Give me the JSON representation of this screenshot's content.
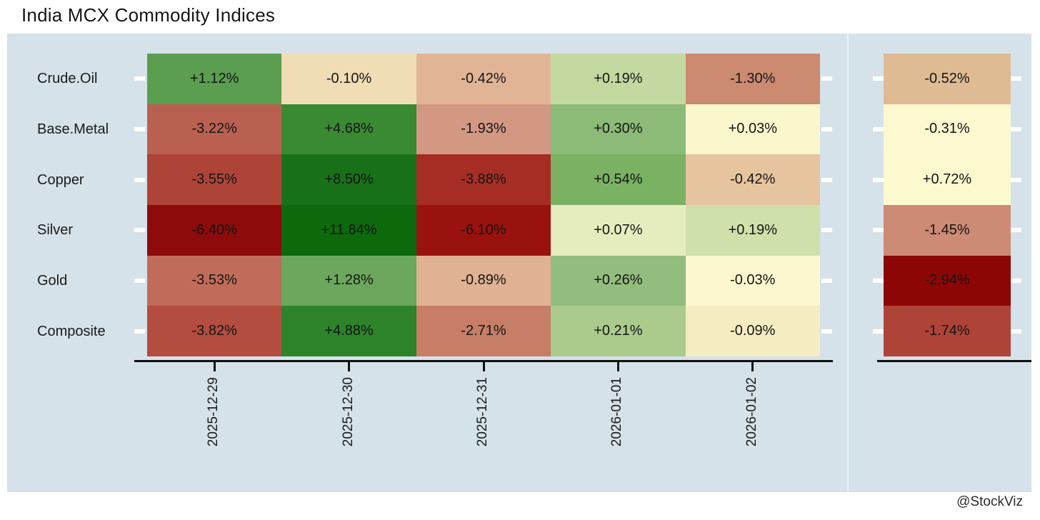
{
  "title": "India MCX Commodity Indices",
  "watermark": "@StockViz",
  "colors": {
    "panel_bg": "#d6e2e9",
    "axis": "#111111",
    "tick": "#ffffff",
    "cell_text": "#151515"
  },
  "chart_data": {
    "type": "heatmap",
    "title": "India MCX Commodity Indices",
    "columns": [
      "2025-12-29",
      "2025-12-30",
      "2025-12-31",
      "2026-01-01",
      "2026-01-02"
    ],
    "rows": [
      {
        "name": "Crude.Oil",
        "values": [
          "+1.12%",
          "-0.10%",
          "-0.42%",
          "+0.19%",
          "-1.30%"
        ],
        "colors": [
          "#5b9e4f",
          "#f0ddb5",
          "#e2b496",
          "#c4d9a0",
          "#cc8a70"
        ],
        "summary_value": "-0.52%",
        "summary_color": "#debb93"
      },
      {
        "name": "Base.Metal",
        "values": [
          "-3.22%",
          "+4.68%",
          "-1.93%",
          "+0.30%",
          "+0.03%"
        ],
        "colors": [
          "#b96050",
          "#3a8a33",
          "#d29884",
          "#8cba77",
          "#fbf7cd"
        ],
        "summary_value": "-0.31%",
        "summary_color": "#fcf8d0"
      },
      {
        "name": "Copper",
        "values": [
          "-3.55%",
          "+8.50%",
          "-3.88%",
          "+0.54%",
          "-0.42%"
        ],
        "colors": [
          "#ad4437",
          "#187119",
          "#a62d24",
          "#7ab163",
          "#e5c49e"
        ],
        "summary_value": "+0.72%",
        "summary_color": "#fcf9cf"
      },
      {
        "name": "Silver",
        "values": [
          "-6.40%",
          "+11.84%",
          "-6.10%",
          "+0.07%",
          "+0.19%"
        ],
        "colors": [
          "#8e0b0b",
          "#0c6a0c",
          "#99120e",
          "#e5edbf",
          "#cfe0ab"
        ],
        "summary_value": "-1.45%",
        "summary_color": "#cd8a74"
      },
      {
        "name": "Gold",
        "values": [
          "-3.53%",
          "+1.28%",
          "-0.89%",
          "+0.26%",
          "-0.03%"
        ],
        "colors": [
          "#c16c5b",
          "#6ba75c",
          "#e0b192",
          "#93bd7e",
          "#fbf8d0"
        ],
        "summary_value": "-2.94%",
        "summary_color": "#8d0606"
      },
      {
        "name": "Composite",
        "values": [
          "-3.82%",
          "+4.88%",
          "-2.71%",
          "+0.21%",
          "-0.09%"
        ],
        "colors": [
          "#b34d3f",
          "#2c832a",
          "#c77e66",
          "#abcb8d",
          "#f6ecc2"
        ],
        "summary_value": "-1.74%",
        "summary_color": "#ae4337"
      }
    ]
  }
}
